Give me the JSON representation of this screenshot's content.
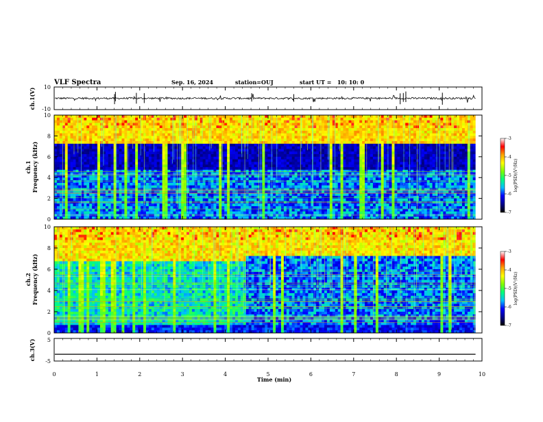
{
  "header": {
    "title": "VLF Spectra",
    "date": "Sep. 16, 2024",
    "station": "station=OUJ",
    "start_ut": "start UT =   10: 10: 0"
  },
  "chart_data": [
    {
      "type": "line",
      "ylabel": "ch.1(V)",
      "ylim": [
        -10,
        10
      ],
      "yticks": [
        "10",
        "-10"
      ],
      "series": [
        {
          "baseline": 0,
          "noise_amplitude": 0.8,
          "color": "#000000"
        }
      ]
    },
    {
      "type": "heatmap",
      "ylabel_lines": [
        "ch.1",
        "Frequency (kHz)"
      ],
      "ylim": [
        0,
        10
      ],
      "yticks": [
        "0",
        "2",
        "4",
        "6",
        "8",
        "10"
      ],
      "colorbar": {
        "label": "log(PSD)(V²/Hz)",
        "range": [
          -7,
          -3
        ],
        "ticks": [
          "-3",
          "-4",
          "-5",
          "-6",
          "-7"
        ],
        "colors": [
          "#000000",
          "#00008b",
          "#0000ff",
          "#00bfff",
          "#00ff7f",
          "#7fff00",
          "#ffff00",
          "#ffa500",
          "#ff0000",
          "#ffffff"
        ]
      }
    },
    {
      "type": "heatmap",
      "ylabel_lines": [
        "ch.2",
        "Frequency (kHz)"
      ],
      "ylim": [
        0,
        10
      ],
      "yticks": [
        "0",
        "2",
        "4",
        "6",
        "8",
        "10"
      ],
      "colorbar": {
        "label": "log(PSD)(V²/Hz)",
        "range": [
          -7,
          -3
        ],
        "ticks": [
          "-3",
          "-4",
          "-5",
          "-6",
          "-7"
        ],
        "colors": [
          "#000000",
          "#00008b",
          "#0000ff",
          "#00bfff",
          "#00ff7f",
          "#7fff00",
          "#ffff00",
          "#ffa500",
          "#ff0000",
          "#ffffff"
        ]
      }
    },
    {
      "type": "line",
      "ylabel": "ch.3(V)",
      "ylim": [
        -5,
        5
      ],
      "yticks": [
        "5",
        "-5"
      ],
      "series": [
        {
          "baseline": -2,
          "noise_amplitude": 0,
          "color": "#000000"
        }
      ]
    }
  ],
  "x_axis": {
    "label": "Time (min)",
    "range": [
      0,
      10
    ],
    "data_end": 9.85,
    "ticks": [
      "0",
      "1",
      "2",
      "3",
      "4",
      "5",
      "6",
      "7",
      "8",
      "9",
      "10"
    ]
  }
}
